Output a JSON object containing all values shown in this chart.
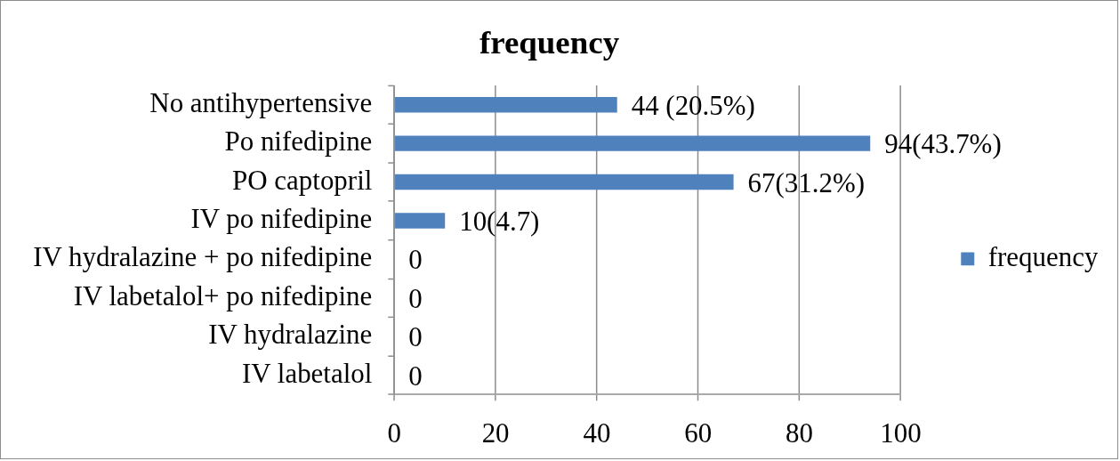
{
  "chart_data": {
    "type": "bar",
    "title": "frequency",
    "orientation": "horizontal",
    "categories": [
      "No antihypertensive",
      "Po nifedipine",
      "PO captopril",
      "IV po nifedipine",
      "IV hydralazine + po nifedipine",
      "IV labetalol+ po nifedipine",
      "IV hydralazine",
      "IV labetalol"
    ],
    "series": [
      {
        "name": "frequency",
        "color": "#4f81bd",
        "values": [
          44,
          94,
          67,
          10,
          0,
          0,
          0,
          0
        ],
        "value_labels": [
          "44 (20.5%)",
          "94(43.7%)",
          "67(31.2%)",
          "10(4.7)",
          "0",
          "0",
          "0",
          "0"
        ]
      }
    ],
    "xlim": [
      0,
      100
    ],
    "xticks": [
      0,
      20,
      40,
      60,
      80,
      100
    ],
    "grid": "x",
    "legend": "right"
  }
}
